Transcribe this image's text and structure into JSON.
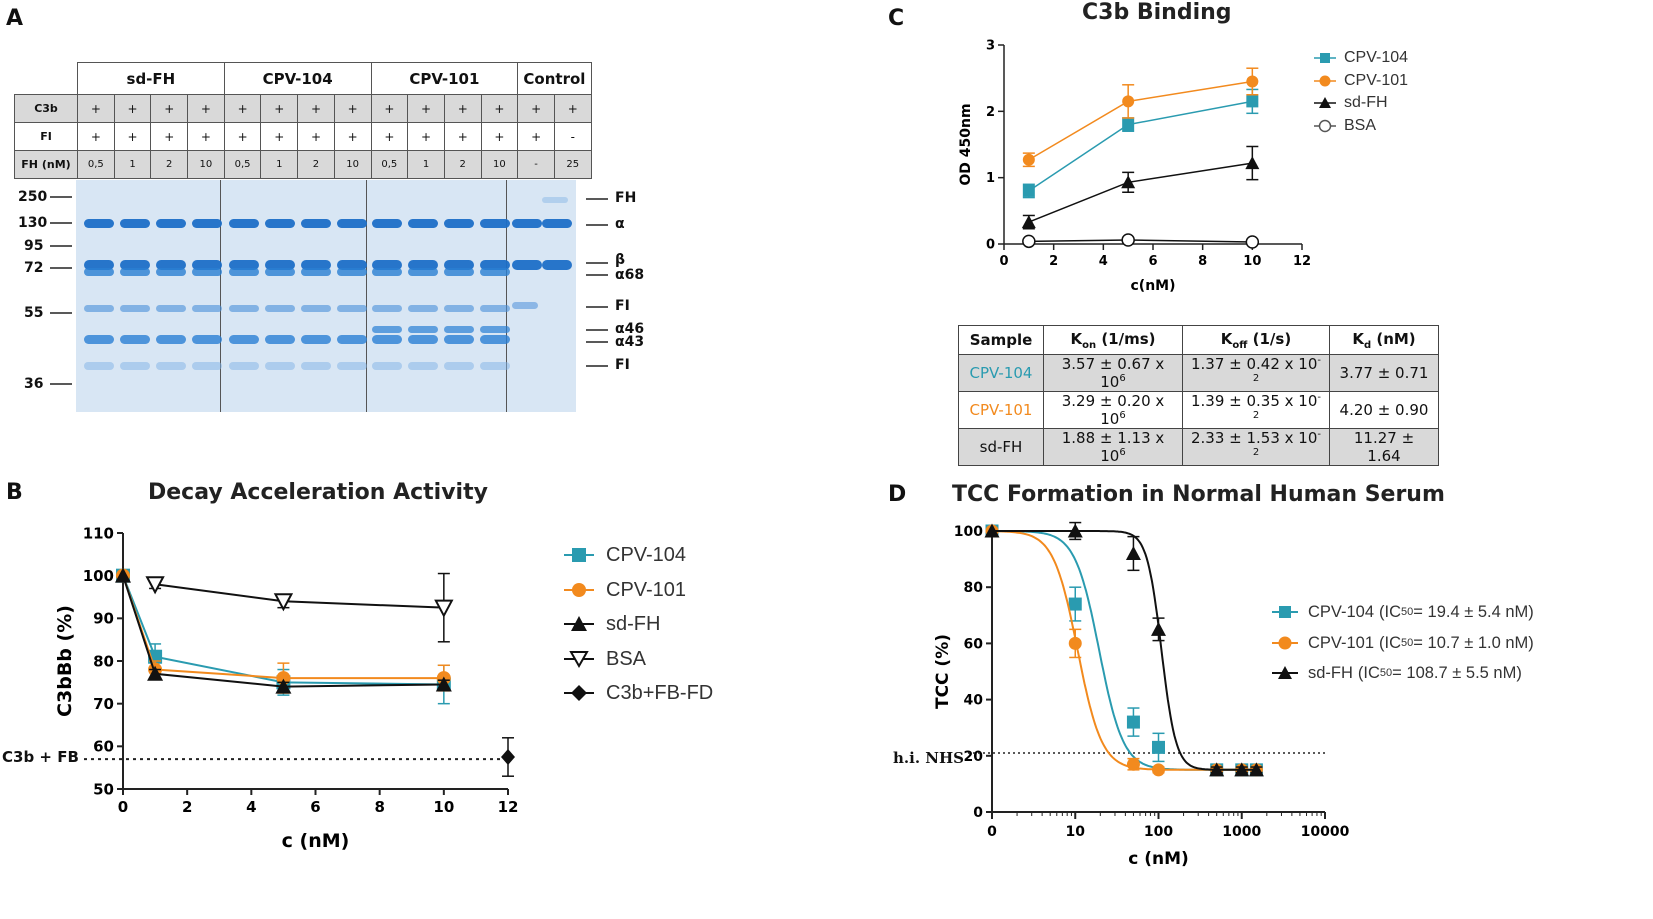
{
  "panel_a": {
    "letter": "A",
    "groups": [
      "sd-FH",
      "CPV-104",
      "CPV-101",
      "Control"
    ],
    "row_labels": [
      "C3b",
      "FI",
      "FH (nM)"
    ],
    "c3b_row": [
      "+",
      "+",
      "+",
      "+",
      "+",
      "+",
      "+",
      "+",
      "+",
      "+",
      "+",
      "+",
      "+",
      "+"
    ],
    "fi_row": [
      "+",
      "+",
      "+",
      "+",
      "+",
      "+",
      "+",
      "+",
      "+",
      "+",
      "+",
      "+",
      "+",
      "-"
    ],
    "fh_row": [
      "0,5",
      "1",
      "2",
      "10",
      "0,5",
      "1",
      "2",
      "10",
      "0,5",
      "1",
      "2",
      "10",
      "-",
      "25"
    ],
    "mw_markers": [
      "250",
      "130",
      "95",
      "72",
      "55",
      "36"
    ],
    "band_labels": [
      "FH",
      "α",
      "β",
      "α68",
      "FI",
      "α46",
      "α43",
      "FI"
    ]
  },
  "panel_c": {
    "letter": "C",
    "table": {
      "headers": {
        "sample": "Sample",
        "kon": "K",
        "kon_sub": "on",
        "kon_unit": " (1/ms)",
        "koff": "K",
        "koff_sub": "off",
        "koff_unit": " (1/s)",
        "kd": "K",
        "kd_sub": "d",
        "kd_unit": " (nM)"
      },
      "rows": [
        {
          "sample": "CPV-104",
          "kon": "3.57 ± 0.67 x 10",
          "kon_exp": "6",
          "koff": "1.37 ± 0.42 x 10",
          "koff_exp": "-2",
          "kd": "3.77 ± 0.71"
        },
        {
          "sample": "CPV-101",
          "kon": "3.29 ± 0.20 x 10",
          "kon_exp": "6",
          "koff": "1.39 ± 0.35 x 10",
          "koff_exp": "-2",
          "kd": "4.20 ± 0.90"
        },
        {
          "sample": "sd-FH",
          "kon": "1.88 ± 1.13 x 10",
          "kon_exp": "6",
          "koff": "2.33 ± 1.53 x 10",
          "koff_exp": "-2",
          "kd": "11.27 ± 1.64"
        }
      ]
    }
  },
  "panel_b": {
    "letter": "B",
    "ref_label": "C3b + FB"
  },
  "panel_d": {
    "letter": "D",
    "ref_label": "h.i. NHS",
    "legend_ic_prefix": "(IC",
    "legend_ic_sub": "50"
  },
  "colors": {
    "cpv104": "#2a9bb0",
    "cpv101": "#f28a1e",
    "sdfh": "#111111"
  },
  "chart_data": [
    {
      "id": "c3b",
      "type": "line",
      "title": "C3b Binding",
      "xlabel": "c(nM)",
      "ylabel": "OD 450nm",
      "xlim": [
        0,
        12
      ],
      "ylim": [
        0,
        3
      ],
      "xticks": [
        "0",
        "2",
        "4",
        "6",
        "8",
        "10",
        "12"
      ],
      "yticks": [
        "0",
        "1",
        "2",
        "3"
      ],
      "series": [
        {
          "name": "CPV-104",
          "marker": "square",
          "x": [
            1,
            5,
            10
          ],
          "y": [
            0.8,
            1.8,
            2.15
          ],
          "err": [
            0.1,
            0.1,
            0.18
          ]
        },
        {
          "name": "CPV-101",
          "marker": "circle",
          "x": [
            1,
            5,
            10
          ],
          "y": [
            1.27,
            2.15,
            2.45
          ],
          "err": [
            0.1,
            0.25,
            0.2
          ]
        },
        {
          "name": "sd-FH",
          "marker": "triangle",
          "x": [
            1,
            5,
            10
          ],
          "y": [
            0.33,
            0.93,
            1.22
          ],
          "err": [
            0.1,
            0.15,
            0.25
          ]
        },
        {
          "name": "BSA",
          "marker": "open-circle",
          "x": [
            1,
            5,
            10
          ],
          "y": [
            0.04,
            0.06,
            0.03
          ],
          "err": [
            0,
            0,
            0
          ]
        }
      ]
    },
    {
      "id": "decay",
      "type": "line",
      "title": "Decay Acceleration Activity",
      "xlabel": "c (nM)",
      "ylabel": "C3bBb (%)",
      "xlim": [
        0,
        12
      ],
      "ylim": [
        50,
        110
      ],
      "xticks": [
        "0",
        "2",
        "4",
        "6",
        "8",
        "10",
        "12"
      ],
      "yticks": [
        "50",
        "60",
        "70",
        "80",
        "90",
        "100",
        "110"
      ],
      "ref_y": 57,
      "series": [
        {
          "name": "CPV-104",
          "marker": "square",
          "x": [
            0,
            1,
            5,
            10
          ],
          "y": [
            100,
            81,
            75,
            74.5
          ],
          "err": [
            0,
            3,
            3,
            4.5
          ]
        },
        {
          "name": "CPV-101",
          "marker": "circle",
          "x": [
            0,
            1,
            5,
            10
          ],
          "y": [
            100,
            78,
            76,
            76
          ],
          "err": [
            0,
            2,
            3.5,
            3
          ]
        },
        {
          "name": "sd-FH",
          "marker": "triangle",
          "x": [
            0,
            1,
            5,
            10
          ],
          "y": [
            100,
            77,
            74,
            74.5
          ],
          "err": [
            0,
            1,
            1,
            1
          ]
        },
        {
          "name": "BSA",
          "marker": "open-triangle",
          "x": [
            1,
            5,
            10
          ],
          "y": [
            98,
            94,
            92.5
          ],
          "err": [
            1,
            1.5,
            8
          ]
        },
        {
          "name": "C3b+FB-FD",
          "marker": "diamond",
          "x": [
            12
          ],
          "y": [
            57.5
          ],
          "err": [
            4.5
          ]
        }
      ]
    },
    {
      "id": "tcc",
      "type": "line",
      "title": "TCC Formation in Normal Human Serum",
      "xlabel": "c (nM)",
      "ylabel": "TCC (%)",
      "xscale": "log",
      "xlim": [
        1,
        10000
      ],
      "ylim": [
        0,
        100
      ],
      "xticks": [
        "0",
        "10",
        "100",
        "1000",
        "10000"
      ],
      "yticks": [
        "0",
        "20",
        "40",
        "60",
        "80",
        "100"
      ],
      "ref_y": 21,
      "series": [
        {
          "name": "CPV-104",
          "legend_value": " = 19.4 ± 5.4 nM)",
          "marker": "square",
          "ic50": 19.4,
          "x": [
            1,
            10,
            50,
            100,
            500,
            1000,
            1500
          ],
          "y": [
            100,
            74,
            32,
            23,
            15,
            15,
            15
          ],
          "err": [
            0,
            6,
            5,
            5,
            1,
            1,
            1
          ]
        },
        {
          "name": "CPV-101",
          "legend_value": " = 10.7 ± 1.0 nM)",
          "marker": "circle",
          "ic50": 10.7,
          "x": [
            1,
            10,
            50,
            100,
            500,
            1000,
            1500
          ],
          "y": [
            100,
            60,
            17,
            15,
            15,
            15,
            15
          ],
          "err": [
            0,
            5,
            2,
            1,
            1,
            1,
            1
          ]
        },
        {
          "name": "sd-FH",
          "legend_value": " = 108.7 ± 5.5 nM)",
          "marker": "triangle",
          "ic50": 108.7,
          "x": [
            1,
            10,
            50,
            100,
            500,
            1000,
            1500
          ],
          "y": [
            100,
            100,
            92,
            65,
            15,
            15,
            15
          ],
          "err": [
            0,
            3,
            6,
            4,
            1,
            1,
            1
          ]
        }
      ]
    }
  ]
}
